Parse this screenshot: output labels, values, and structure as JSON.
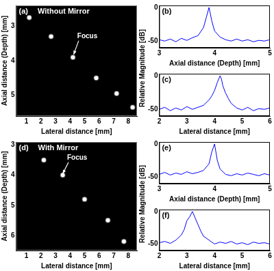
{
  "chart_data": [
    {
      "type": "scatter",
      "panel": "(a)",
      "title": "Without Mirror",
      "x": [
        1.2,
        2.7,
        4.2,
        5.8,
        7.2,
        8.3
      ],
      "values": [
        2.75,
        3.3,
        3.9,
        4.5,
        4.95,
        5.35
      ],
      "color": "#ffffff",
      "xlim": [
        0.3,
        8.6
      ],
      "xticks": [
        1,
        2,
        3,
        4,
        5,
        6,
        7,
        8
      ],
      "ylim": [
        5.6,
        2.4
      ],
      "yticks": [
        3,
        4,
        5
      ],
      "x_label": "Lateral distance [mm]",
      "y_label": "Axial distance (Depth) [mm]",
      "grid": false,
      "annotations": [
        {
          "text": "Focus",
          "x": 4.5,
          "y": 3.4,
          "target_x": 4.25,
          "target_y": 3.82
        }
      ]
    },
    {
      "type": "line",
      "panel": "(b)",
      "x": [
        3.0,
        3.1,
        3.2,
        3.3,
        3.4,
        3.5,
        3.6,
        3.7,
        3.8,
        3.85,
        3.9,
        3.95,
        4.0,
        4.1,
        4.2,
        4.3,
        4.4,
        4.5,
        4.6,
        4.7,
        4.8,
        4.9,
        5.0
      ],
      "values": [
        -48,
        -50,
        -47,
        -51,
        -46,
        -49,
        -45,
        -42,
        -30,
        -15,
        0,
        -20,
        -35,
        -44,
        -48,
        -50,
        -47,
        -50,
        -48,
        -51,
        -49,
        -50,
        -48
      ],
      "color": "#0000ff",
      "xlim": [
        3,
        5
      ],
      "xticks": [
        3,
        4,
        5
      ],
      "ylim": [
        -60,
        3
      ],
      "yticks": [
        -50,
        0
      ],
      "x_label": "Axial distance (Depth) [mm]",
      "y_label": "Relative Magnitude [dB]",
      "grid": false
    },
    {
      "type": "line",
      "panel": "(c)",
      "x": [
        2.0,
        2.2,
        2.4,
        2.6,
        2.8,
        3.0,
        3.2,
        3.4,
        3.6,
        3.8,
        3.9,
        4.0,
        4.1,
        4.2,
        4.25,
        4.3,
        4.4,
        4.5,
        4.6,
        4.8,
        5.0,
        5.2,
        5.4,
        5.6,
        5.8,
        6.0
      ],
      "values": [
        -50,
        -47,
        -52,
        -48,
        -51,
        -46,
        -50,
        -47,
        -44,
        -36,
        -30,
        -22,
        -10,
        0,
        -5,
        -15,
        -26,
        -34,
        -41,
        -48,
        -51,
        -47,
        -52,
        -49,
        -50,
        -48
      ],
      "color": "#0000ff",
      "xlim": [
        2,
        6
      ],
      "xticks": [
        2,
        3,
        4,
        5,
        6
      ],
      "ylim": [
        -60,
        3
      ],
      "yticks": [
        -50,
        0
      ],
      "x_label": "Lateral distance [mm]",
      "grid": false
    },
    {
      "type": "scatter",
      "panel": "(d)",
      "title": "With Mirror",
      "x": [
        2.2,
        3.5,
        5.0,
        6.6,
        7.7
      ],
      "values": [
        3.5,
        4.0,
        4.8,
        5.5,
        6.2
      ],
      "color": "#ffffff",
      "xlim": [
        0.3,
        8.6
      ],
      "xticks": [
        1,
        2,
        3,
        4,
        5,
        6,
        7,
        8
      ],
      "ylim": [
        6.5,
        2.9
      ],
      "yticks": [
        3,
        4,
        5,
        6
      ],
      "x_label": "Lateral distance [mm]",
      "y_label": "Axial distance (Depth) [mm]",
      "grid": false,
      "annotations": [
        {
          "text": "Focus",
          "x": 3.8,
          "y": 3.55,
          "target_x": 3.5,
          "target_y": 3.95
        }
      ]
    },
    {
      "type": "line",
      "panel": "(e)",
      "x": [
        3.0,
        3.1,
        3.2,
        3.3,
        3.4,
        3.5,
        3.6,
        3.7,
        3.8,
        3.9,
        3.95,
        4.0,
        4.05,
        4.1,
        4.2,
        4.3,
        4.4,
        4.5,
        4.6,
        4.7,
        4.8,
        4.9,
        5.0
      ],
      "values": [
        -46,
        -43,
        -47,
        -44,
        -46,
        -42,
        -45,
        -43,
        -40,
        -30,
        -12,
        0,
        -25,
        -38,
        -46,
        -48,
        -45,
        -47,
        -44,
        -46,
        -48,
        -45,
        -47
      ],
      "color": "#0000ff",
      "xlim": [
        3,
        5
      ],
      "xticks": [
        3,
        4,
        5
      ],
      "ylim": [
        -60,
        3
      ],
      "yticks": [
        -50,
        0
      ],
      "x_label": "Axial distance (Depth) [mm]",
      "y_label": "Relative Magnitude [dB]",
      "grid": false
    },
    {
      "type": "line",
      "panel": "(f)",
      "x": [
        2.0,
        2.2,
        2.4,
        2.6,
        2.8,
        2.9,
        3.0,
        3.1,
        3.2,
        3.3,
        3.4,
        3.5,
        3.6,
        3.8,
        4.0,
        4.2,
        4.4,
        4.6,
        4.8,
        5.0,
        5.2,
        5.4,
        5.6,
        5.8,
        6.0
      ],
      "values": [
        -48,
        -46,
        -49,
        -44,
        -36,
        -28,
        -14,
        -8,
        0,
        -10,
        -20,
        -30,
        -38,
        -44,
        -50,
        -47,
        -49,
        -46,
        -50,
        -48,
        -51,
        -47,
        -49,
        -48,
        -50
      ],
      "color": "#0000ff",
      "xlim": [
        2,
        6
      ],
      "xticks": [
        2,
        3,
        4,
        5,
        6
      ],
      "ylim": [
        -60,
        3
      ],
      "yticks": [
        -50,
        0
      ],
      "x_label": "Lateral distance [mm]",
      "grid": false
    }
  ]
}
